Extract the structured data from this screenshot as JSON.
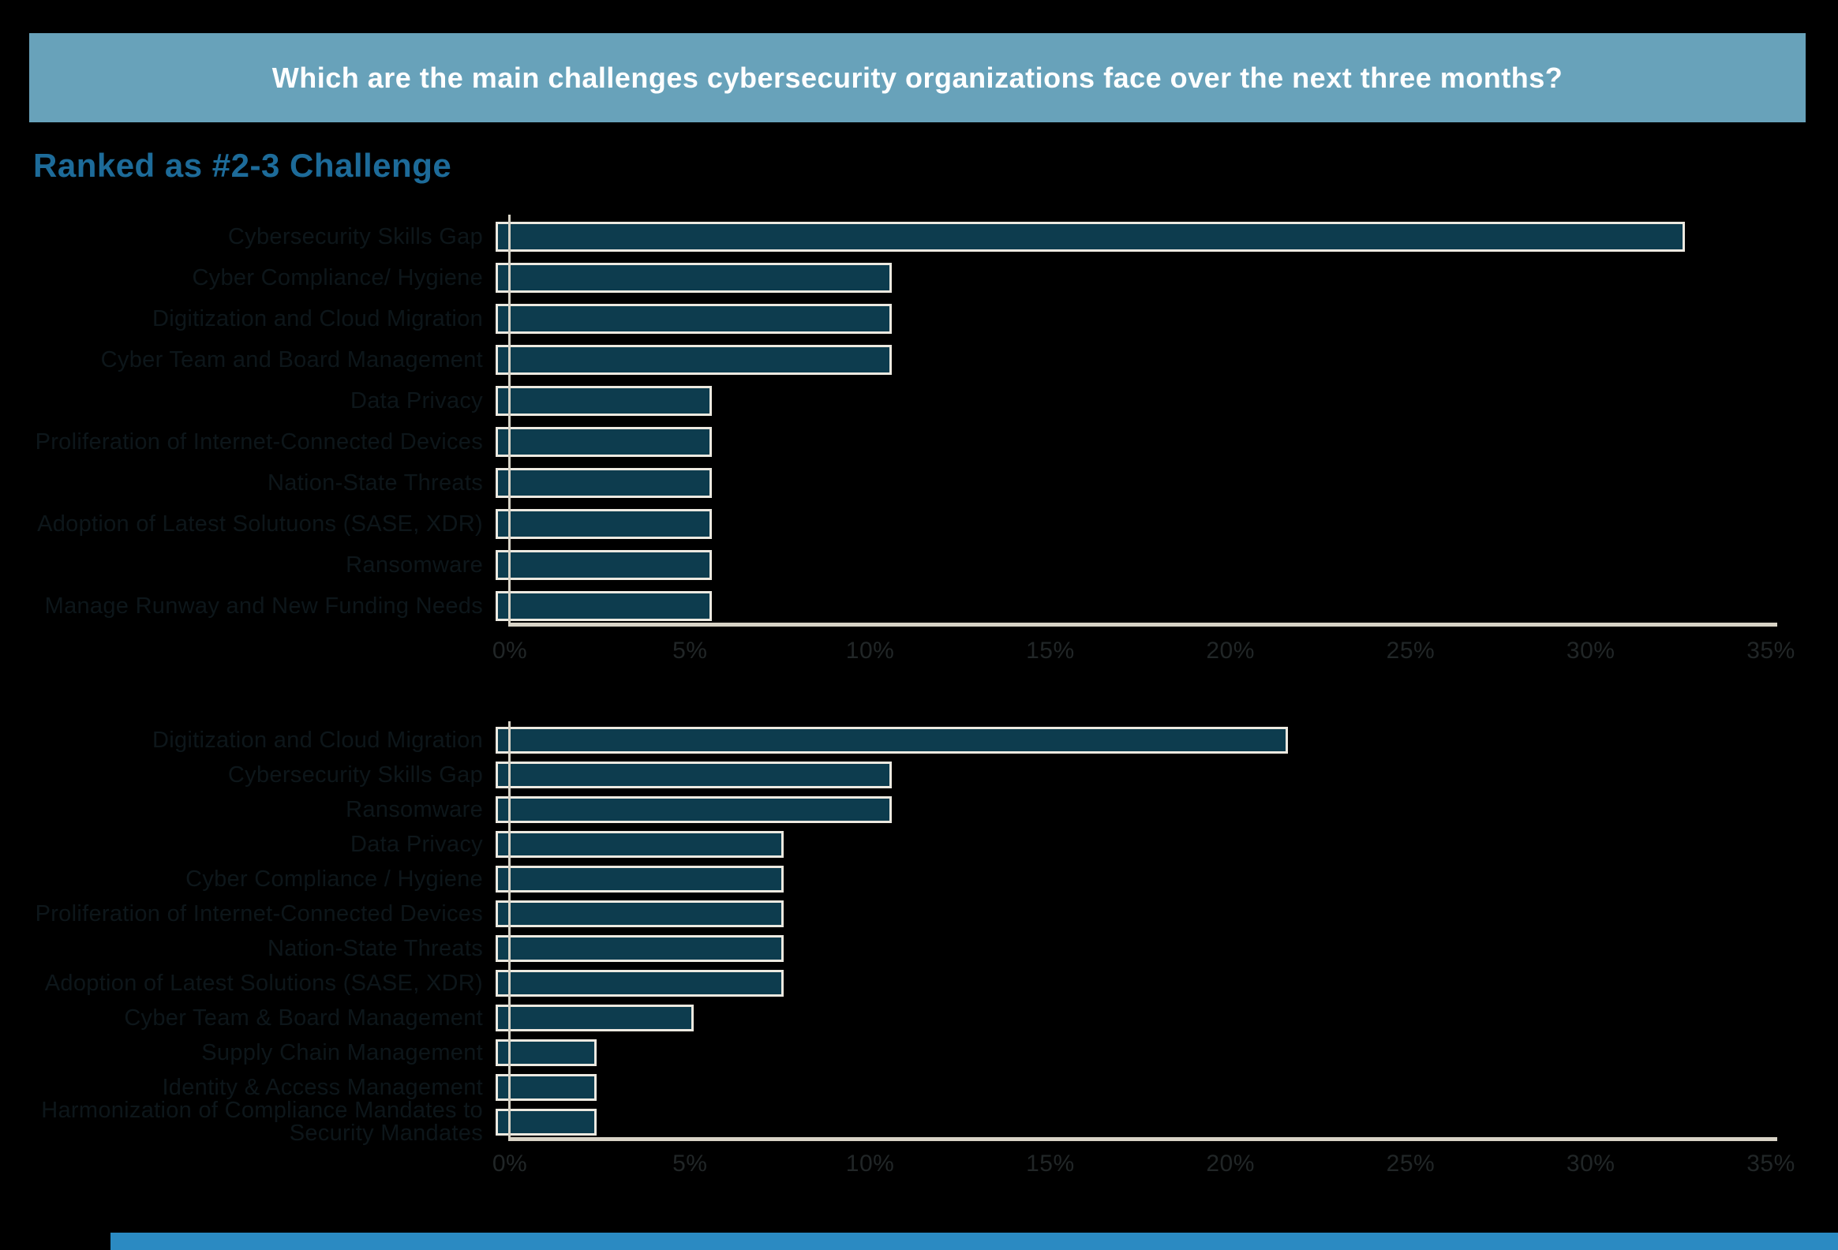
{
  "banner": {
    "title": "Which are the main challenges cybersecurity organizations face over the next three months?"
  },
  "subtitle": "Ranked as #2-3 Challenge",
  "colors": {
    "background": "#000000",
    "banner_bg": "#68a2ba",
    "banner_text": "#ffffff",
    "subtitle_text": "#1d6b99",
    "bar_fill": "#0d3c4e",
    "bar_border": "#ece9e0",
    "axis_line": "#d8d3c6",
    "category_label": "#0d161a",
    "tick_label": "#212627",
    "footer_strip": "#2b8ac2"
  },
  "chart_data": [
    {
      "type": "bar",
      "orientation": "horizontal",
      "position": "top",
      "categories": [
        "Cybersecurity Skills Gap",
        "Cyber Compliance/ Hygiene",
        "Digitization and Cloud Migration",
        "Cyber Team and Board Management",
        "Data Privacy",
        "Proliferation of Internet-Connected Devices",
        "Nation-State Threats",
        "Adoption of Latest Solutuons (SASE, XDR)",
        "Ransomware",
        "Manage Runway and New Funding Needs"
      ],
      "values": [
        33,
        11,
        11,
        11,
        6,
        6,
        6,
        6,
        6,
        6
      ],
      "value_unit": "%",
      "xlim": [
        0,
        35
      ],
      "tick_step": 5,
      "tick_labels": [
        "0%",
        "5%",
        "10%",
        "15%",
        "20%",
        "25%",
        "30%",
        "35%"
      ],
      "grid": false,
      "legend": false
    },
    {
      "type": "bar",
      "orientation": "horizontal",
      "position": "bottom",
      "categories": [
        "Digitization and Cloud Migration",
        "Cybersecurity Skills Gap",
        "Ransomware",
        "Data Privacy",
        "Cyber Compliance / Hygiene",
        "Proliferation of Internet-Connected Devices",
        "Nation-State Threats",
        "Adoption of Latest Solutions (SASE, XDR)",
        "Cyber Team & Board Management",
        "Supply Chain Management",
        "Identity & Access Management",
        "Harmonization of Compliance Mandates to Security Mandates"
      ],
      "values": [
        22,
        11,
        11,
        8,
        8,
        8,
        8,
        8,
        5.5,
        2.8,
        2.8,
        2.8
      ],
      "value_unit": "%",
      "xlim": [
        0,
        35
      ],
      "tick_step": 5,
      "tick_labels": [
        "0%",
        "5%",
        "10%",
        "15%",
        "20%",
        "25%",
        "30%",
        "35%"
      ],
      "grid": false,
      "legend": false
    }
  ]
}
